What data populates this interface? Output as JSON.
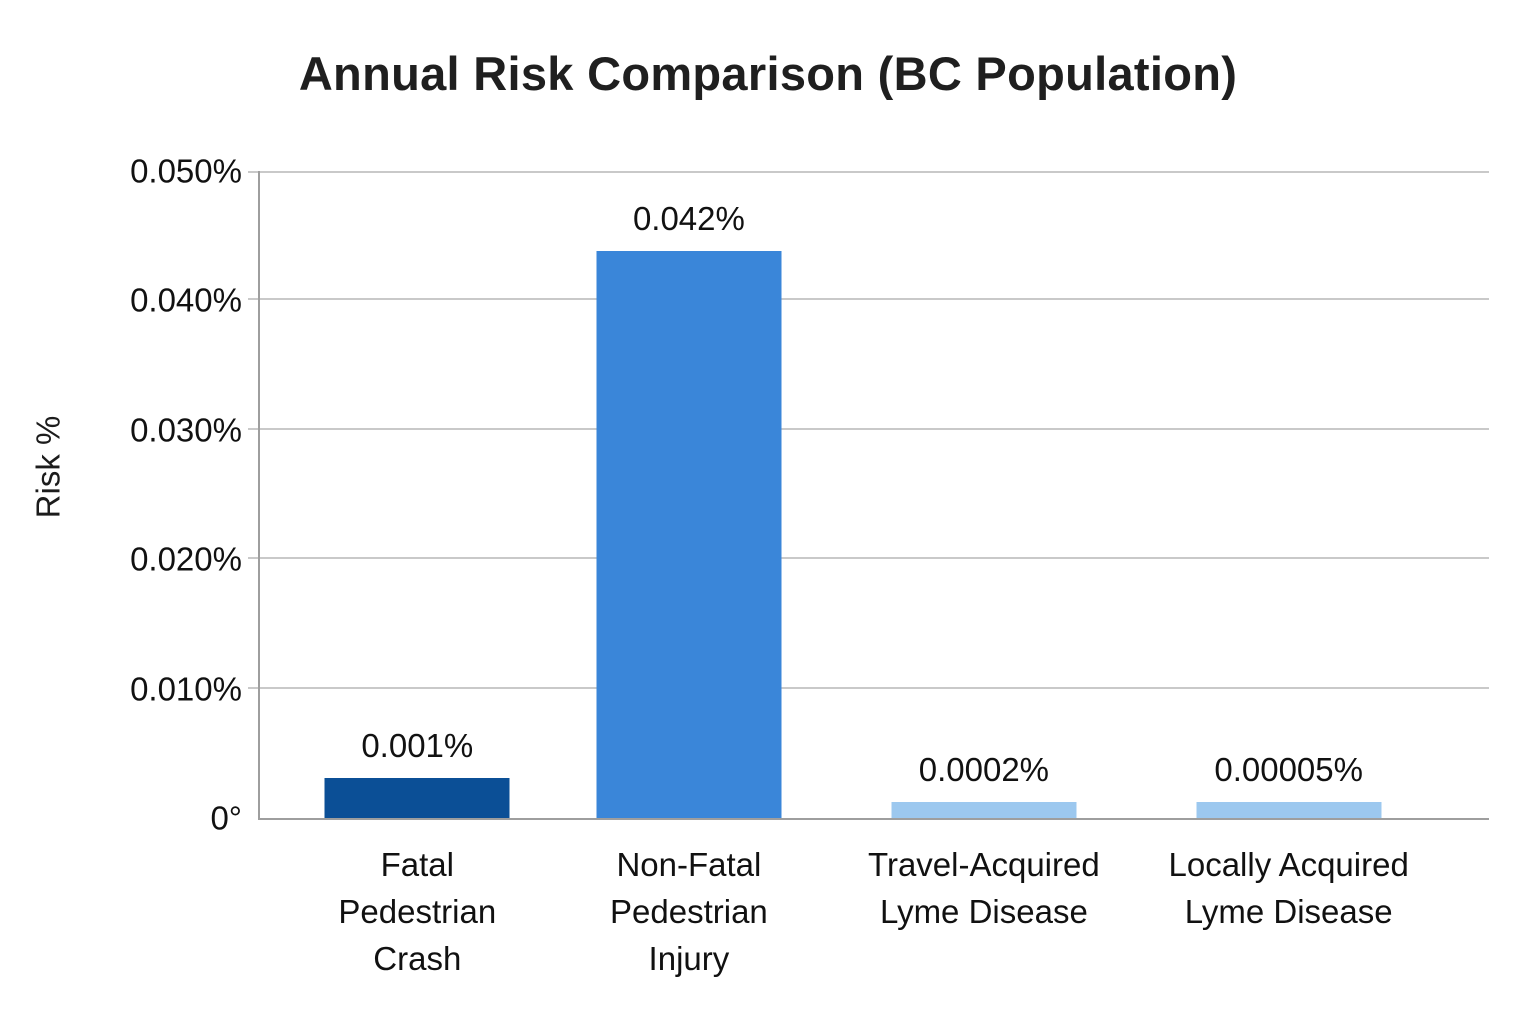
{
  "chart_data": {
    "type": "bar",
    "title": "Annual Risk Comparison (BC Population)",
    "ylabel": "Risk %",
    "xlabel": "",
    "categories": [
      "Fatal Pedestrian Crash",
      "Non-Fatal Pedestrian Injury",
      "Travel-Acquired Lyme Disease",
      "Locally Acquired Lyme Disease"
    ],
    "values_pct": [
      0.001,
      0.042,
      0.0002,
      5e-05
    ],
    "value_labels": [
      "0.001%",
      "0.042%",
      "0.0002%",
      "0.00005%"
    ],
    "ylim": [
      0,
      0.05
    ],
    "grid": true,
    "legend": null,
    "yticks": [
      {
        "value": 0.0,
        "label": "0°",
        "pos_pct": 0
      },
      {
        "value": 0.01,
        "label": "0.010%",
        "pos_pct": 20
      },
      {
        "value": 0.02,
        "label": "0.020%",
        "pos_pct": 40
      },
      {
        "value": 0.03,
        "label": "0.030%",
        "pos_pct": 60
      },
      {
        "value": 0.04,
        "label": "0.040%",
        "pos_pct": 80
      },
      {
        "value": 0.05,
        "label": "0.050%",
        "pos_pct": 100
      }
    ],
    "bars": [
      {
        "category": "Fatal Pedestrian Crash",
        "category_lines": [
          "Fatal",
          "Pedestrian",
          "Crash"
        ],
        "value_pct": 0.001,
        "value_label": "0.001%",
        "color": "#0b4f96",
        "center_pct": 12.8,
        "display_height_pct": 6.2
      },
      {
        "category": "Non-Fatal Pedestrian Injury",
        "category_lines": [
          "Non-Fatal",
          "Pedestrian",
          "Injury"
        ],
        "value_pct": 0.042,
        "value_label": "0.042%",
        "color": "#3a86d9",
        "center_pct": 34.9,
        "display_height_pct": 87.6
      },
      {
        "category": "Travel-Acquired Lyme Disease",
        "category_lines": [
          "Travel-Acquired",
          "Lyme Disease"
        ],
        "value_pct": 0.0002,
        "value_label": "0.0002%",
        "color": "#9cc8ef",
        "center_pct": 58.9,
        "display_height_pct": 2.5
      },
      {
        "category": "Locally Acquired Lyme Disease",
        "category_lines": [
          "Locally Acquired",
          "Lyme Disease"
        ],
        "value_pct": 5e-05,
        "value_label": "0.00005%",
        "color": "#9cc8ef",
        "center_pct": 83.7,
        "display_height_pct": 2.5
      }
    ],
    "colors": {
      "bar_dark_blue": "#0b4f96",
      "bar_medium_blue": "#3a86d9",
      "bar_light_blue": "#9cc8ef",
      "gridline": "#c9c9c9",
      "axis_line": "#9e9e9e",
      "text": "#111111"
    }
  }
}
